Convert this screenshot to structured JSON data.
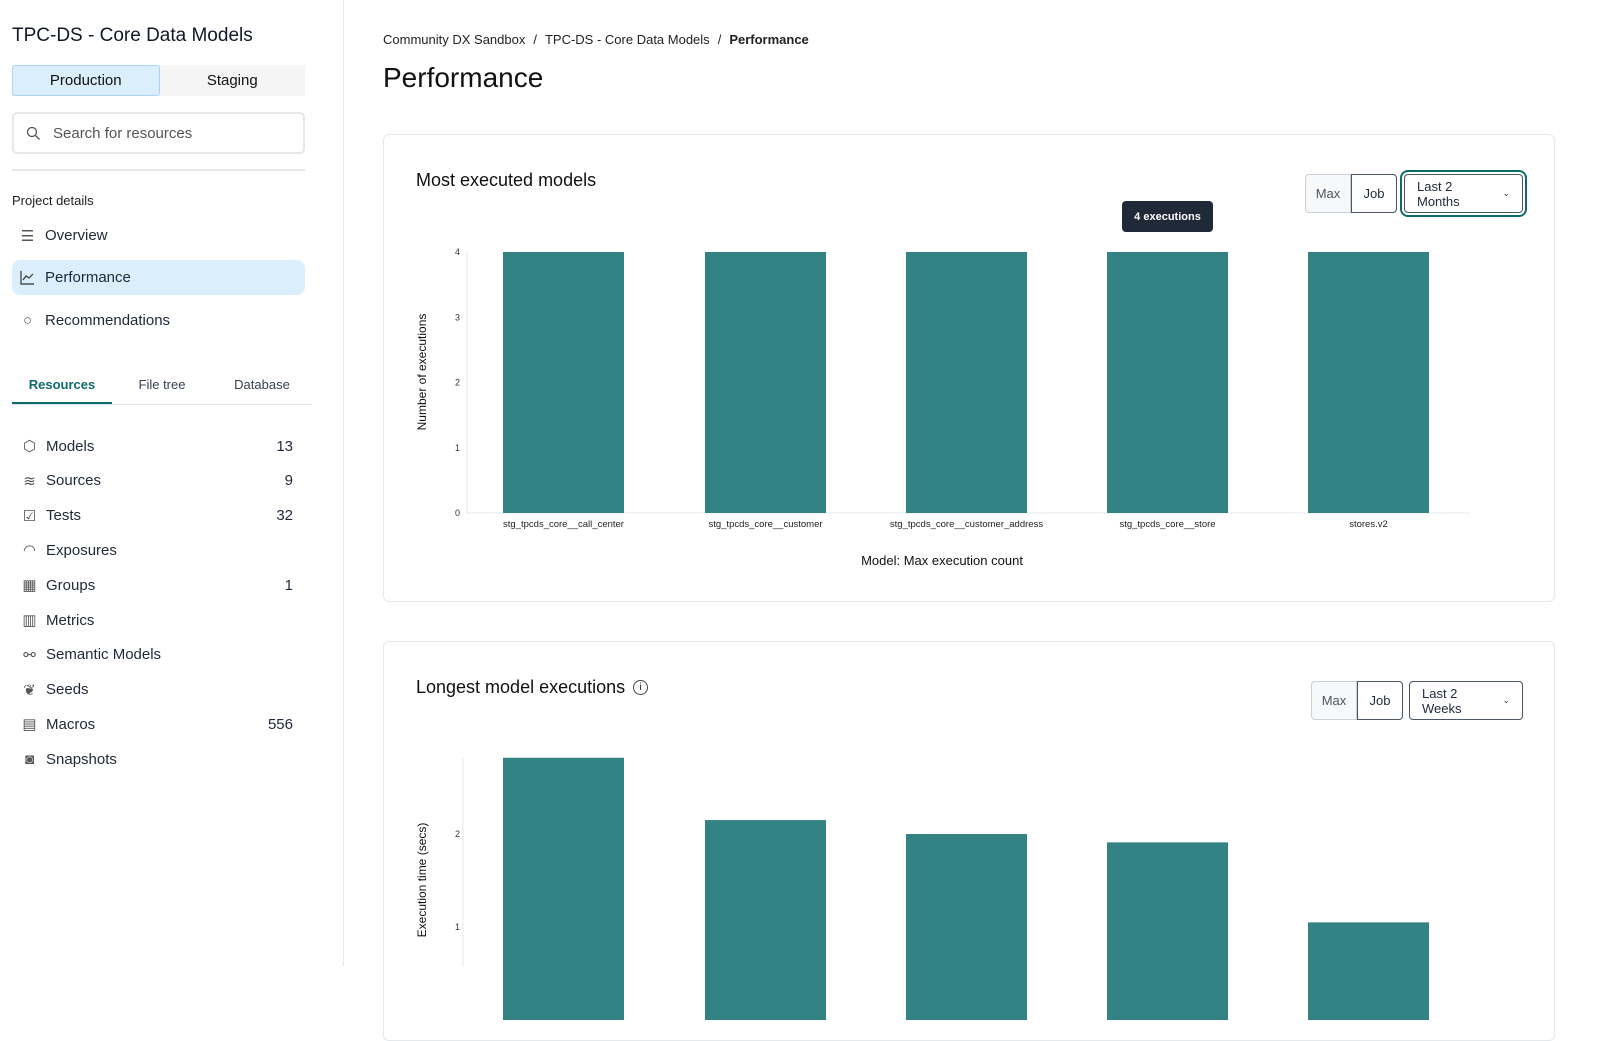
{
  "sidebar": {
    "project_title": "TPC-DS - Core Data Models",
    "environments": [
      {
        "label": "Production",
        "active": true
      },
      {
        "label": "Staging",
        "active": false
      }
    ],
    "search_placeholder": "Search for resources",
    "section_title": "Project details",
    "nav": [
      {
        "label": "Overview",
        "icon": "list-icon"
      },
      {
        "label": "Performance",
        "icon": "line-chart-icon",
        "active": true
      },
      {
        "label": "Recommendations",
        "icon": "lightbulb-icon"
      }
    ],
    "tabs": [
      {
        "label": "Resources",
        "active": true
      },
      {
        "label": "File tree"
      },
      {
        "label": "Database"
      }
    ],
    "resources": [
      {
        "label": "Models",
        "count": "13",
        "icon": "cube-icon"
      },
      {
        "label": "Sources",
        "count": "9",
        "icon": "database-icon"
      },
      {
        "label": "Tests",
        "count": "32",
        "icon": "clipboard-check-icon"
      },
      {
        "label": "Exposures",
        "count": "",
        "icon": "gauge-icon"
      },
      {
        "label": "Groups",
        "count": "1",
        "icon": "grid-icon"
      },
      {
        "label": "Metrics",
        "count": "",
        "icon": "bar-chart-icon"
      },
      {
        "label": "Semantic Models",
        "count": "",
        "icon": "nodes-icon"
      },
      {
        "label": "Seeds",
        "count": "",
        "icon": "sprout-icon"
      },
      {
        "label": "Macros",
        "count": "556",
        "icon": "file-text-icon"
      },
      {
        "label": "Snapshots",
        "count": "",
        "icon": "camera-icon"
      }
    ]
  },
  "breadcrumb": [
    "Community DX Sandbox",
    "TPC-DS - Core Data Models",
    "Performance"
  ],
  "page_title": "Performance",
  "colors": {
    "bar": "#338385",
    "accent": "#0f6b6b",
    "active_bg": "#dbeefc"
  },
  "cards": [
    {
      "title": "Most executed models",
      "toggle": [
        "Max",
        "Job"
      ],
      "toggle_active": "Job",
      "range": "Last 2 Months",
      "tooltip": "4 executions"
    },
    {
      "title": "Longest model executions",
      "toggle": [
        "Max",
        "Job"
      ],
      "toggle_active": "Job",
      "range": "Last 2 Weeks"
    }
  ],
  "chart_data": [
    {
      "type": "bar",
      "title": "",
      "ylabel": "Number of executions",
      "xlabel": "Model: Max execution count",
      "categories": [
        "stg_tpcds_core__call_center",
        "stg_tpcds_core__customer",
        "stg_tpcds_core__customer_address",
        "stg_tpcds_core__store",
        "stores.v2"
      ],
      "values": [
        4,
        4,
        4,
        4,
        4
      ],
      "ylim": [
        0,
        4
      ],
      "yticks": [
        "0",
        "1",
        "2",
        "3",
        "4"
      ],
      "grid": false
    },
    {
      "type": "bar",
      "title": "",
      "ylabel": "Execution time (secs)",
      "values": [
        2.82,
        2.15,
        2.0,
        1.91,
        1.05
      ],
      "yticks": [
        "1",
        "2"
      ],
      "grid": false
    }
  ]
}
